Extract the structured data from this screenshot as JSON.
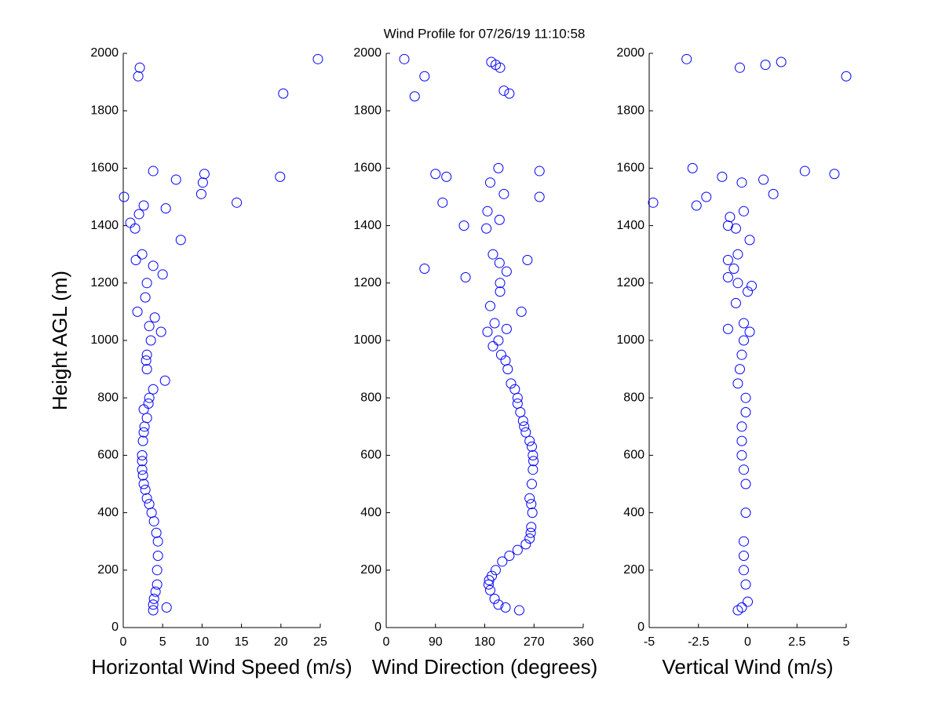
{
  "chart_data": [
    {
      "type": "scatter",
      "title": "Wind Profile for  07/26/19 11:10:58",
      "ylabel": "Height AGL (m)",
      "xlabel": "Horizontal Wind Speed (m/s)",
      "color": "#0000ff",
      "xlim": [
        0,
        25
      ],
      "xticks": [
        0,
        5,
        10,
        15,
        20,
        25
      ],
      "ylim": [
        0,
        2000
      ],
      "yticks": [
        0,
        200,
        400,
        600,
        800,
        1000,
        1200,
        1400,
        1600,
        1800,
        2000
      ],
      "x": [
        3.8,
        5.5,
        3.8,
        3.9,
        4.1,
        4.3,
        4.3,
        4.4,
        4.4,
        4.2,
        3.9,
        3.6,
        3.3,
        3.0,
        2.8,
        2.6,
        2.5,
        2.4,
        2.4,
        2.4,
        2.5,
        2.6,
        2.7,
        3.0,
        2.6,
        3.2,
        3.3,
        3.8,
        5.3,
        3.0,
        2.9,
        3.0,
        3.5,
        4.8,
        3.3,
        4.0,
        1.8,
        2.8,
        3.0,
        5.0,
        3.8,
        1.6,
        2.4,
        7.3,
        1.5,
        0.9,
        2.0,
        5.4,
        2.6,
        14.4,
        0.1,
        9.9,
        10.1,
        6.7,
        19.9,
        10.3,
        3.8,
        20.3,
        1.9,
        2.1,
        24.7
      ],
      "y": [
        60,
        70,
        80,
        100,
        125,
        150,
        200,
        250,
        300,
        330,
        370,
        400,
        430,
        450,
        480,
        500,
        530,
        550,
        580,
        600,
        650,
        680,
        700,
        730,
        760,
        780,
        800,
        830,
        860,
        900,
        930,
        950,
        1000,
        1030,
        1050,
        1080,
        1100,
        1150,
        1200,
        1230,
        1260,
        1280,
        1300,
        1350,
        1390,
        1410,
        1440,
        1460,
        1470,
        1480,
        1500,
        1510,
        1550,
        1560,
        1570,
        1580,
        1590,
        1860,
        1920,
        1950,
        1980
      ]
    },
    {
      "type": "scatter",
      "xlabel": "Wind Direction (degrees)",
      "color": "#0000ff",
      "xlim": [
        0,
        360
      ],
      "xticks": [
        0,
        90,
        180,
        270,
        360
      ],
      "ylim": [
        0,
        2000
      ],
      "yticks": [
        0,
        200,
        400,
        600,
        800,
        1000,
        1200,
        1400,
        1600,
        1800,
        2000
      ],
      "x": [
        243,
        218,
        205,
        198,
        190,
        187,
        188,
        193,
        200,
        212,
        225,
        240,
        255,
        262,
        264,
        265,
        267,
        265,
        262,
        266,
        268,
        269,
        268,
        266,
        262,
        255,
        252,
        250,
        245,
        240,
        240,
        235,
        228,
        222,
        218,
        210,
        195,
        205,
        185,
        220,
        198,
        247,
        190,
        208,
        208,
        145,
        220,
        70,
        207,
        258,
        195,
        183,
        142,
        207,
        185,
        103,
        280,
        215,
        190,
        110,
        90,
        280,
        205,
        52,
        225,
        215,
        70,
        208,
        200,
        192,
        33
      ],
      "y": [
        60,
        70,
        80,
        100,
        130,
        150,
        165,
        180,
        200,
        230,
        250,
        270,
        290,
        310,
        330,
        350,
        400,
        430,
        450,
        500,
        550,
        580,
        600,
        630,
        650,
        680,
        700,
        720,
        750,
        780,
        800,
        830,
        850,
        900,
        930,
        950,
        980,
        1000,
        1030,
        1040,
        1060,
        1100,
        1120,
        1170,
        1200,
        1220,
        1240,
        1250,
        1270,
        1280,
        1300,
        1390,
        1400,
        1420,
        1450,
        1480,
        1500,
        1510,
        1550,
        1570,
        1580,
        1590,
        1600,
        1850,
        1860,
        1870,
        1920,
        1950,
        1960,
        1970,
        1980
      ]
    },
    {
      "type": "scatter",
      "xlabel": "Vertical Wind (m/s)",
      "color": "#0000ff",
      "xlim": [
        -5,
        5
      ],
      "xticks": [
        -5,
        -2.5,
        0,
        2.5,
        5
      ],
      "ylim": [
        0,
        2000
      ],
      "yticks": [
        0,
        200,
        400,
        600,
        800,
        1000,
        1200,
        1400,
        1600,
        1800,
        2000
      ],
      "x": [
        -0.5,
        -0.3,
        0.0,
        -0.1,
        -0.2,
        -0.2,
        -0.2,
        -0.1,
        -0.1,
        -0.2,
        -0.3,
        -0.3,
        -0.3,
        -0.1,
        -0.1,
        -0.5,
        -0.4,
        -0.3,
        -0.2,
        0.1,
        -1.0,
        -0.2,
        -0.6,
        0.0,
        0.2,
        -0.5,
        -1.0,
        -0.7,
        -1.0,
        -0.5,
        0.1,
        -0.6,
        -1.0,
        -0.9,
        -0.2,
        -2.6,
        -4.8,
        -2.1,
        1.3,
        -0.3,
        0.8,
        -1.3,
        4.4,
        2.9,
        -2.8,
        5.0,
        -0.4,
        0.9,
        1.7,
        -3.1
      ],
      "y": [
        60,
        70,
        90,
        150,
        200,
        250,
        300,
        400,
        500,
        550,
        600,
        650,
        700,
        750,
        800,
        850,
        900,
        950,
        1000,
        1030,
        1040,
        1060,
        1130,
        1170,
        1190,
        1200,
        1220,
        1250,
        1280,
        1300,
        1350,
        1390,
        1400,
        1430,
        1450,
        1470,
        1480,
        1500,
        1510,
        1550,
        1560,
        1570,
        1580,
        1590,
        1600,
        1920,
        1950,
        1960,
        1970,
        1980
      ]
    }
  ]
}
